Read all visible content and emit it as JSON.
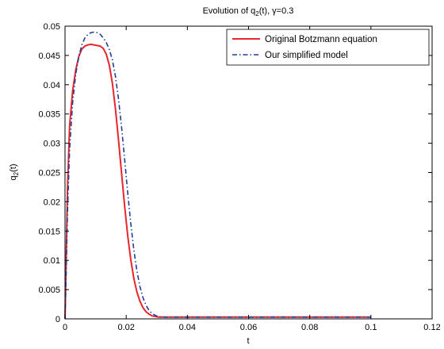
{
  "chart_data": {
    "type": "line",
    "title": "Evolution of q2(t), γ=0.3",
    "title_parts": {
      "prefix": "Evolution of q",
      "subscript": "2",
      "suffix": "(t), γ=0.3"
    },
    "xlabel": "t",
    "ylabel": "q2(t)",
    "ylabel_parts": {
      "prefix": "q",
      "subscript": "2",
      "suffix": "(t)"
    },
    "xlim": [
      0,
      0.12
    ],
    "ylim": [
      0,
      0.05
    ],
    "x_ticks": [
      0,
      0.02,
      0.04,
      0.06,
      0.08,
      0.1,
      0.12
    ],
    "x_tick_labels": [
      "0",
      "0.02",
      "0.04",
      "0.06",
      "0.08",
      "0.1",
      "0.12"
    ],
    "y_ticks": [
      0,
      0.005,
      0.01,
      0.015,
      0.02,
      0.025,
      0.03,
      0.035,
      0.04,
      0.045,
      0.05
    ],
    "y_tick_labels": [
      "0",
      "0.005",
      "0.01",
      "0.015",
      "0.02",
      "0.025",
      "0.03",
      "0.035",
      "0.04",
      "0.045",
      "0.05"
    ],
    "grid": false,
    "legend_position": "top-right",
    "series": [
      {
        "name": "Original Botzmann equation",
        "color": "#e8262b",
        "style": "solid",
        "x": [
          0,
          0.0003,
          0.0008,
          0.0015,
          0.0025,
          0.0035,
          0.0045,
          0.0055,
          0.0065,
          0.0075,
          0.0085,
          0.0095,
          0.0105,
          0.0115,
          0.0125,
          0.0135,
          0.0145,
          0.0155,
          0.0165,
          0.0175,
          0.0185,
          0.0195,
          0.0205,
          0.0215,
          0.0225,
          0.0235,
          0.0245,
          0.0255,
          0.0265,
          0.0275,
          0.0285,
          0.0295,
          0.0305,
          0.0315,
          0.033,
          0.035,
          0.04,
          0.05,
          0.06,
          0.07,
          0.08,
          0.09,
          0.1
        ],
        "y": [
          0,
          0.008,
          0.022,
          0.033,
          0.039,
          0.0425,
          0.0448,
          0.0461,
          0.0466,
          0.0468,
          0.0469,
          0.0468,
          0.0467,
          0.0466,
          0.0462,
          0.0452,
          0.0433,
          0.0402,
          0.0358,
          0.0305,
          0.0248,
          0.0192,
          0.0142,
          0.0101,
          0.0069,
          0.0046,
          0.003,
          0.0019,
          0.0012,
          0.0008,
          0.0005,
          0.0004,
          0.0003,
          0.0003,
          0.0003,
          0.0003,
          0.0003,
          0.0003,
          0.0003,
          0.0003,
          0.0003,
          0.0003,
          0.0003
        ]
      },
      {
        "name": "Our simplified model",
        "color": "#1f3f9a",
        "style": "dash-dot",
        "x": [
          0,
          0.0003,
          0.0008,
          0.0015,
          0.0025,
          0.0035,
          0.0045,
          0.0055,
          0.0065,
          0.0075,
          0.0085,
          0.0095,
          0.0105,
          0.0115,
          0.0125,
          0.0135,
          0.0145,
          0.0155,
          0.0165,
          0.0175,
          0.0185,
          0.0195,
          0.0205,
          0.0215,
          0.0225,
          0.0235,
          0.0245,
          0.0255,
          0.0265,
          0.0275,
          0.0285,
          0.0295,
          0.0305,
          0.0315,
          0.033,
          0.035,
          0.04,
          0.05,
          0.06,
          0.07,
          0.08,
          0.09,
          0.1
        ],
        "y": [
          0,
          0.006,
          0.018,
          0.029,
          0.037,
          0.0418,
          0.0448,
          0.0468,
          0.048,
          0.0486,
          0.0489,
          0.049,
          0.0489,
          0.0486,
          0.048,
          0.0472,
          0.046,
          0.0442,
          0.0414,
          0.0375,
          0.0327,
          0.0272,
          0.0215,
          0.0163,
          0.0118,
          0.0082,
          0.0055,
          0.0036,
          0.0023,
          0.0014,
          0.0009,
          0.0006,
          0.0004,
          0.0003,
          0.0003,
          0.0003,
          0.0003,
          0.0003,
          0.0003,
          0.0003,
          0.0003,
          0.0003,
          0.0003
        ]
      }
    ]
  }
}
